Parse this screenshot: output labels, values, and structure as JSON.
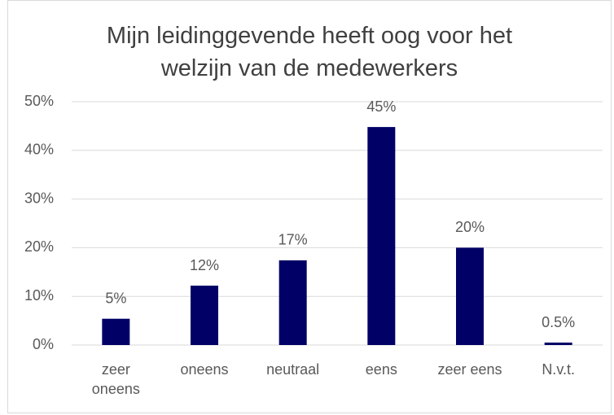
{
  "chart_data": {
    "type": "bar",
    "title": "Mijn leidinggevende heeft oog voor het welzijn van de medewerkers",
    "categories": [
      "zeer oneens",
      "oneens",
      "neutraal",
      "eens",
      "zeer eens",
      "N.v.t."
    ],
    "values": [
      5.4,
      12.2,
      17.4,
      44.8,
      20,
      0.5
    ],
    "value_labels": [
      "5%",
      "12%",
      "17%",
      "45%",
      "20%",
      "0.5%"
    ],
    "color": "#000066",
    "ylim": [
      0,
      50
    ],
    "yticks": [
      {
        "value": 0,
        "label": "0%"
      },
      {
        "value": 10,
        "label": "10%"
      },
      {
        "value": 20,
        "label": "20%"
      },
      {
        "value": 30,
        "label": "30%"
      },
      {
        "value": 40,
        "label": "40%"
      },
      {
        "value": 50,
        "label": "50%"
      }
    ],
    "grid": true
  }
}
